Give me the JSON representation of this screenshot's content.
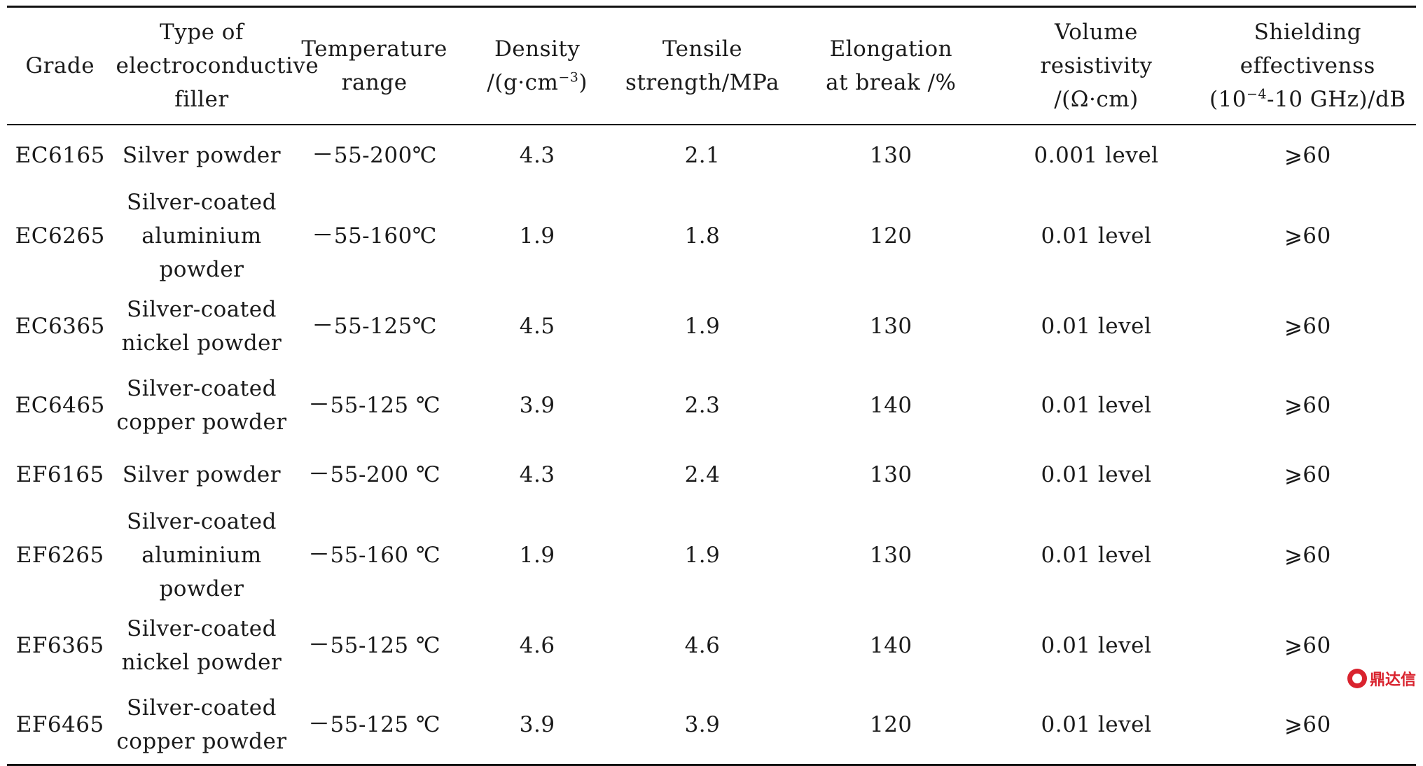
{
  "table": {
    "headers": [
      [
        "Grade"
      ],
      [
        "Type of",
        "electroconductive",
        "filler"
      ],
      [
        "Temperature",
        "range"
      ],
      [
        "Density",
        "/(g·cm",
        "−3",
        ")"
      ],
      [
        "Tensile",
        "strength/MPa"
      ],
      [
        "Elongation",
        "at break /%"
      ],
      [
        "Volume resistivity",
        "/(Ω·cm)"
      ],
      [
        "Shielding",
        "effectivenss",
        "(10",
        "−4",
        "-10 GHz)/dB"
      ]
    ],
    "rows": [
      {
        "grade": "EC6165",
        "filler": [
          "Silver powder"
        ],
        "temp": "－55-200℃",
        "density": "4.3",
        "tensile": "2.1",
        "elongation": "130",
        "resistivity": "0.001 level",
        "shielding": "⩾60"
      },
      {
        "grade": "EC6265",
        "filler": [
          "Silver-coated",
          "aluminium powder"
        ],
        "temp": "－55-160℃",
        "density": "1.9",
        "tensile": "1.8",
        "elongation": "120",
        "resistivity": "0.01 level",
        "shielding": "⩾60"
      },
      {
        "grade": "EC6365",
        "filler": [
          "Silver-coated",
          "nickel powder"
        ],
        "temp": "－55-125℃",
        "density": "4.5",
        "tensile": "1.9",
        "elongation": "130",
        "resistivity": "0.01 level",
        "shielding": "⩾60"
      },
      {
        "grade": "EC6465",
        "filler": [
          "Silver-coated",
          "copper powder"
        ],
        "temp": "－55-125 ℃",
        "density": "3.9",
        "tensile": "2.3",
        "elongation": "140",
        "resistivity": "0.01 level",
        "shielding": "⩾60"
      },
      {
        "grade": "EF6165",
        "filler": [
          "Silver powder"
        ],
        "temp": "－55-200 ℃",
        "density": "4.3",
        "tensile": "2.4",
        "elongation": "130",
        "resistivity": "0.01 level",
        "shielding": "⩾60"
      },
      {
        "grade": "EF6265",
        "filler": [
          "Silver-coated",
          "aluminium powder"
        ],
        "temp": "－55-160 ℃",
        "density": "1.9",
        "tensile": "1.9",
        "elongation": "130",
        "resistivity": "0.01 level",
        "shielding": "⩾60"
      },
      {
        "grade": "EF6365",
        "filler": [
          "Silver-coated",
          "nickel powder"
        ],
        "temp": "－55-125 ℃",
        "density": "4.6",
        "tensile": "4.6",
        "elongation": "140",
        "resistivity": "0.01 level",
        "shielding": "⩾60"
      },
      {
        "grade": "EF6465",
        "filler": [
          "Silver-coated",
          "copper powder"
        ],
        "temp": "－55-125 ℃",
        "density": "3.9",
        "tensile": "3.9",
        "elongation": "120",
        "resistivity": "0.01 level",
        "shielding": "⩾60"
      }
    ]
  },
  "watermark": {
    "text": "鼎达信",
    "icon": "logo-mark",
    "color": "#d9232e"
  }
}
